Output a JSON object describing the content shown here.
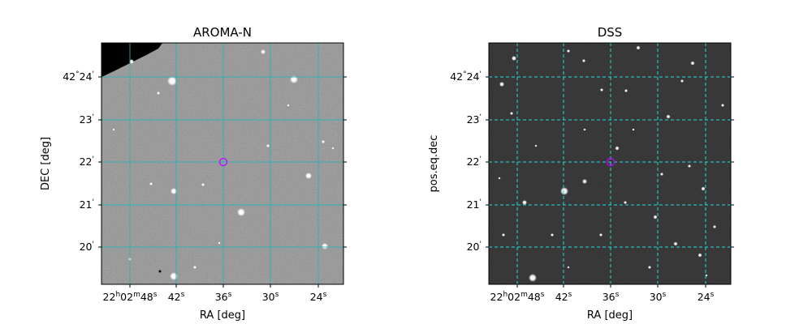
{
  "panels": [
    {
      "title": "AROMA-N",
      "xlabel": "RA [deg]",
      "ylabel": "DEC [deg]",
      "grid_style": "solid",
      "xtick_labels": [
        {
          "hms": "22",
          "min": "02",
          "sec": "48"
        },
        {
          "sec": "42"
        },
        {
          "sec": "36"
        },
        {
          "sec": "30"
        },
        {
          "sec": "24"
        }
      ],
      "ytick_labels": [
        {
          "deg": "42",
          "arcmin": "24"
        },
        {
          "arcmin": "23"
        },
        {
          "arcmin": "22"
        },
        {
          "arcmin": "21"
        },
        {
          "arcmin": "20"
        }
      ]
    },
    {
      "title": "DSS",
      "xlabel": "RA [deg]",
      "ylabel": "pos.eq.dec",
      "grid_style": "dashed",
      "xtick_labels": [
        {
          "hms": "22",
          "min": "02",
          "sec": "48"
        },
        {
          "sec": "42"
        },
        {
          "sec": "36"
        },
        {
          "sec": "30"
        },
        {
          "sec": "24"
        }
      ],
      "ytick_labels": [
        {
          "deg": "42",
          "arcmin": "24"
        },
        {
          "arcmin": "23"
        },
        {
          "arcmin": "22"
        },
        {
          "arcmin": "21"
        },
        {
          "arcmin": "20"
        }
      ]
    }
  ],
  "colors": {
    "grid": "#1fb5b5",
    "target_marker": "#c400ff",
    "aroma_background": "#8a8a8a",
    "dss_background": "#1c1c1c"
  }
}
